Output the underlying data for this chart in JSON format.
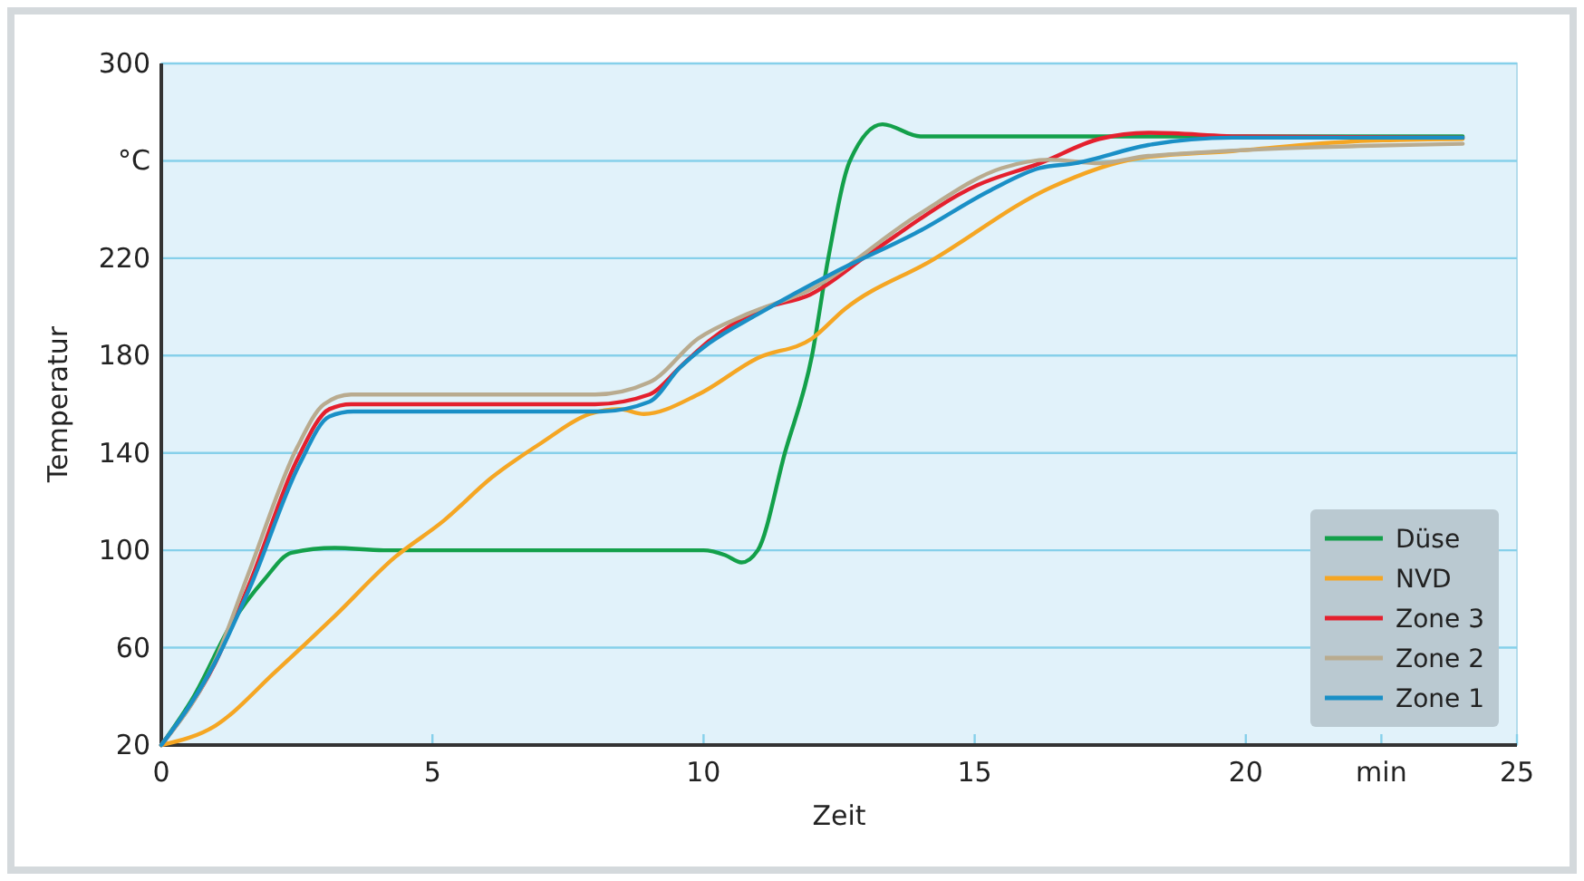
{
  "chart_data": {
    "type": "line",
    "xlabel": "Zeit",
    "ylabel": "Temperatur",
    "xlim": [
      0,
      25
    ],
    "xticks": [
      0,
      5,
      10,
      15,
      20,
      {
        "value": 22.5,
        "label": "min"
      },
      25
    ],
    "ylim": [
      20,
      300
    ],
    "yticks": [
      20,
      60,
      100,
      140,
      180,
      220,
      {
        "value": 260,
        "label": "°C"
      },
      300
    ],
    "grid": "y",
    "legend": "bottom right",
    "line_style": "solid",
    "marker": "none",
    "series": [
      {
        "name": "Düse",
        "color": "#13a04a",
        "x": [
          0,
          0.6,
          1.3,
          1.9,
          2.4,
          3.2,
          4.1,
          6,
          8,
          10,
          10.4,
          10.7,
          11.0,
          11.5,
          12.0,
          12.3,
          12.7,
          13.3,
          14.0,
          18,
          24
        ],
        "values": [
          20,
          40,
          70,
          88,
          99,
          101,
          100,
          100,
          100,
          100,
          98,
          95,
          100,
          140,
          180,
          220,
          260,
          275,
          270,
          270,
          270
        ]
      },
      {
        "name": "NVD",
        "color": "#f5a623",
        "x": [
          0,
          1,
          2.1,
          3.2,
          4.3,
          5.2,
          6.1,
          7,
          7.9,
          8.45,
          8.9,
          9.9,
          11,
          12,
          12.6,
          14.2,
          16.4,
          18,
          19.75,
          22,
          24
        ],
        "values": [
          20,
          28,
          50,
          73,
          97,
          112,
          130,
          144,
          156,
          158,
          156,
          164,
          179,
          187,
          199,
          219,
          249,
          261,
          264,
          268,
          269
        ]
      },
      {
        "name": "Zone 3",
        "color": "#e4202e",
        "x": [
          0,
          1,
          1.64,
          2.5,
          3.1,
          3.5,
          5,
          8,
          9,
          9.6,
          10.1,
          11.06,
          11.96,
          13.07,
          15.05,
          16.2,
          17.3,
          18.2,
          20,
          24
        ],
        "values": [
          20,
          54,
          87,
          137,
          158,
          160,
          160,
          160,
          164,
          176,
          186,
          199,
          205,
          222,
          250,
          259,
          269,
          271.5,
          270,
          269.5
        ]
      },
      {
        "name": "Zone 2",
        "color": "#b9ab8f",
        "x": [
          0,
          1,
          1.6,
          2.5,
          3.0,
          3.5,
          5,
          8,
          9,
          9.9,
          10.8,
          11.96,
          13.97,
          15.5,
          16.4,
          17.3,
          18.2,
          24
        ],
        "values": [
          20,
          55,
          90,
          142,
          160,
          164,
          164,
          164,
          169,
          187,
          197,
          207,
          238,
          257,
          260.5,
          259,
          262,
          267
        ]
      },
      {
        "name": "Zone 1",
        "color": "#1a8fc6",
        "x": [
          0,
          0.97,
          1.64,
          2.54,
          3.1,
          3.54,
          5,
          8.1,
          9.0,
          9.56,
          10.1,
          11.0,
          12.4,
          13.97,
          15.3,
          16.2,
          16.85,
          18.2,
          19.75,
          24
        ],
        "values": [
          20,
          53,
          85,
          135,
          155,
          157,
          157,
          157,
          161,
          175,
          185,
          197,
          214,
          231,
          248,
          257,
          259,
          266.5,
          269.5,
          269.5
        ]
      }
    ]
  }
}
